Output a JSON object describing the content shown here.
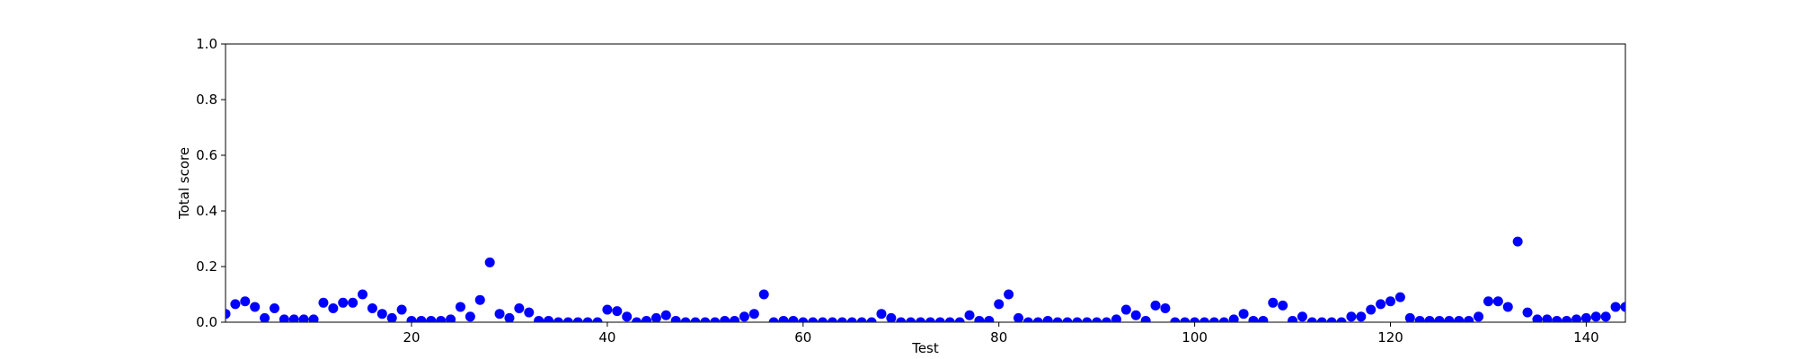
{
  "chart_data": {
    "type": "scatter",
    "xlabel": "Test",
    "ylabel": "Total score",
    "color": "#0000ff",
    "x": [
      1,
      2,
      3,
      4,
      5,
      6,
      7,
      8,
      9,
      10,
      11,
      12,
      13,
      14,
      15,
      16,
      17,
      18,
      19,
      20,
      21,
      22,
      23,
      24,
      25,
      26,
      27,
      28,
      29,
      30,
      31,
      32,
      33,
      34,
      35,
      36,
      37,
      38,
      39,
      40,
      41,
      42,
      43,
      44,
      45,
      46,
      47,
      48,
      49,
      50,
      51,
      52,
      53,
      54,
      55,
      56,
      57,
      58,
      59,
      60,
      61,
      62,
      63,
      64,
      65,
      66,
      67,
      68,
      69,
      70,
      71,
      72,
      73,
      74,
      75,
      76,
      77,
      78,
      79,
      80,
      81,
      82,
      83,
      84,
      85,
      86,
      87,
      88,
      89,
      90,
      91,
      92,
      93,
      94,
      95,
      96,
      97,
      98,
      99,
      100,
      101,
      102,
      103,
      104,
      105,
      106,
      107,
      108,
      109,
      110,
      111,
      112,
      113,
      114,
      115,
      116,
      117,
      118,
      119,
      120,
      121,
      122,
      123,
      124,
      125,
      126,
      127,
      128,
      129,
      130,
      131,
      132,
      133,
      134,
      135,
      136,
      137,
      138,
      139,
      140,
      141,
      142,
      143,
      144
    ],
    "values": [
      0.03,
      0.065,
      0.075,
      0.055,
      0.015,
      0.05,
      0.01,
      0.01,
      0.01,
      0.01,
      0.07,
      0.05,
      0.07,
      0.07,
      0.1,
      0.05,
      0.03,
      0.015,
      0.045,
      0.005,
      0.005,
      0.005,
      0.005,
      0.01,
      0.055,
      0.02,
      0.08,
      0.215,
      0.03,
      0.015,
      0.05,
      0.035,
      0.005,
      0.005,
      0,
      0,
      0,
      0,
      0,
      0.045,
      0.04,
      0.02,
      0,
      0.005,
      0.015,
      0.025,
      0.005,
      0,
      0,
      0,
      0,
      0.005,
      0.005,
      0.02,
      0.03,
      0.1,
      0,
      0.005,
      0.005,
      0,
      0,
      0,
      0,
      0,
      0,
      0,
      0,
      0.03,
      0.015,
      0,
      0,
      0,
      0,
      0,
      0,
      0,
      0.025,
      0.005,
      0.005,
      0.065,
      0.1,
      0.015,
      0,
      0,
      0.005,
      0,
      0,
      0,
      0,
      0,
      0,
      0.01,
      0.045,
      0.025,
      0.005,
      0.06,
      0.05,
      0,
      0,
      0,
      0,
      0,
      0,
      0.01,
      0.03,
      0.005,
      0.005,
      0.07,
      0.06,
      0.005,
      0.02,
      0,
      0,
      0,
      0,
      0.02,
      0.02,
      0.045,
      0.065,
      0.075,
      0.09,
      0.015,
      0.005,
      0.005,
      0.005,
      0.005,
      0.005,
      0.005,
      0.02,
      0.075,
      0.075,
      0.055,
      0.29,
      0.035,
      0.01,
      0.01,
      0.005,
      0.005,
      0.01,
      0.015,
      0.02,
      0.02,
      0.055,
      0.055
    ],
    "xlim": [
      1,
      144
    ],
    "xticks": [
      20,
      40,
      60,
      80,
      100,
      120,
      140
    ],
    "ylim": [
      0,
      1
    ],
    "yticks": [
      {
        "value": 0,
        "label": "0.0"
      },
      0.2,
      0.4,
      0.6,
      0.8,
      {
        "value": 1,
        "label": "1.0"
      }
    ]
  }
}
